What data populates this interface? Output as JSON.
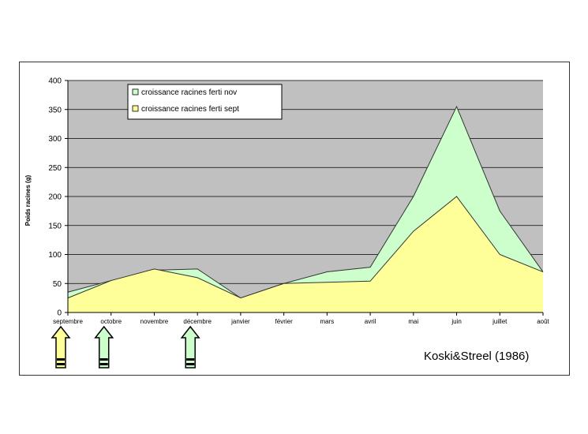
{
  "chart_data": {
    "type": "area",
    "categories": [
      "septembre",
      "octobre",
      "novembre",
      "décembre",
      "janvier",
      "février",
      "mars",
      "avril",
      "mai",
      "juin",
      "juillet",
      "août"
    ],
    "series": [
      {
        "name": "croissance racines ferti nov",
        "values": [
          35,
          55,
          73,
          75,
          25,
          50,
          70,
          78,
          200,
          355,
          175,
          70
        ],
        "color": "#ccffcc"
      },
      {
        "name": "croissance racines ferti sept",
        "values": [
          25,
          55,
          75,
          60,
          25,
          50,
          52,
          54,
          140,
          200,
          100,
          70
        ],
        "color": "#ffff99"
      }
    ],
    "ylabel": "Poids racines (g)",
    "xlabel": "",
    "ylim": [
      0,
      400
    ],
    "yticks": [
      0,
      50,
      100,
      150,
      200,
      250,
      300,
      350,
      400
    ],
    "grid": true,
    "plot_background": "#c0c0c0",
    "legend": "top-left",
    "annotation": "Koski&Streel  (1986)",
    "arrows": [
      {
        "month": "septembre",
        "series": "croissance racines ferti sept",
        "color": "#ffff99"
      },
      {
        "month": "octobre",
        "series": "croissance racines ferti nov",
        "color": "#ccffcc"
      },
      {
        "month": "décembre",
        "series": "croissance racines ferti nov",
        "color": "#ccffcc"
      }
    ]
  }
}
